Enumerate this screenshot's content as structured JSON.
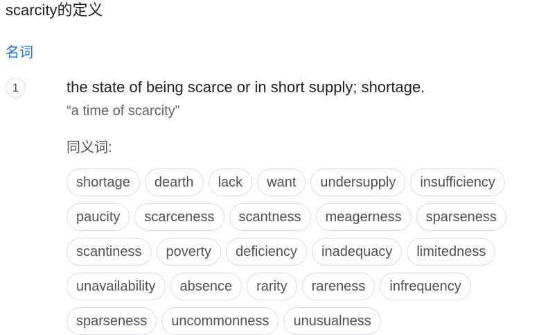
{
  "header": {
    "title": "scarcity的定义"
  },
  "entry": {
    "part_of_speech": "名词",
    "sense_number": "1",
    "definition": "the state of being scarce or in short supply; shortage.",
    "example": "“a time of scarcity”",
    "synonyms_label": "同义词:",
    "synonyms": [
      "shortage",
      "dearth",
      "lack",
      "want",
      "undersupply",
      "insufficiency",
      "paucity",
      "scarceness",
      "scantness",
      "meagerness",
      "sparseness",
      "scantiness",
      "poverty",
      "deficiency",
      "inadequacy",
      "limitedness",
      "unavailability",
      "absence",
      "rarity",
      "rareness",
      "infrequency",
      "sparseness",
      "uncommonness",
      "unusualness"
    ]
  }
}
